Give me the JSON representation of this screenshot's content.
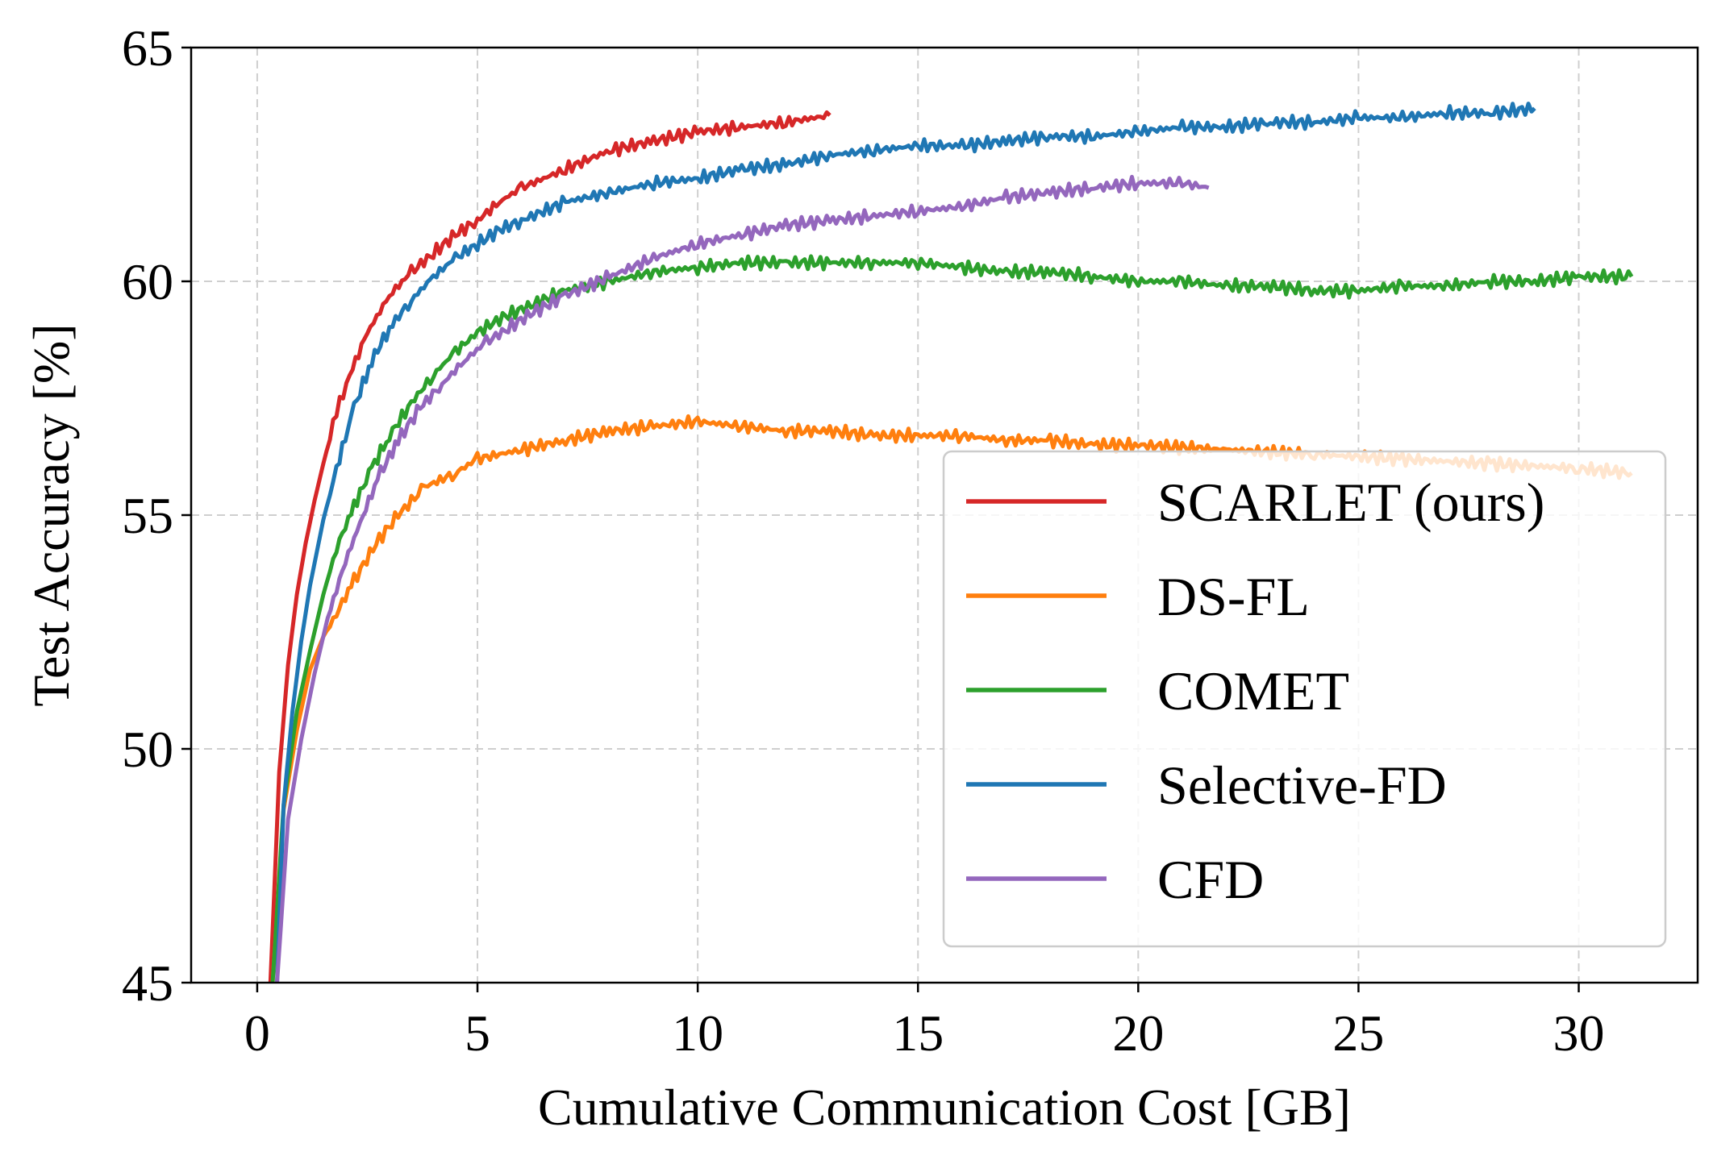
{
  "chart_data": {
    "type": "line",
    "title": "",
    "xlabel": "Cumulative Communication Cost [GB]",
    "ylabel": "Test Accuracy [%]",
    "xlim": [
      -1.5,
      32.7
    ],
    "ylim": [
      45,
      65
    ],
    "xticks": [
      0,
      5,
      10,
      15,
      20,
      25,
      30
    ],
    "yticks": [
      45,
      50,
      55,
      60,
      65
    ],
    "grid": true,
    "legend_position": "lower right",
    "series": [
      {
        "name": "SCARLET (ours)",
        "color": "#d62728",
        "x": [
          0.3,
          0.5,
          0.7,
          0.9,
          1.1,
          1.3,
          1.5,
          1.8,
          2.1,
          2.5,
          3.0,
          3.5,
          4.0,
          4.5,
          5.0,
          5.5,
          6.0,
          7.0,
          8.0,
          9.0,
          10.0,
          11.0,
          12.0,
          13.0
        ],
        "y": [
          45.0,
          49.5,
          51.8,
          53.3,
          54.4,
          55.3,
          56.1,
          57.2,
          58.0,
          58.9,
          59.7,
          60.2,
          60.6,
          61.0,
          61.3,
          61.7,
          62.0,
          62.4,
          62.8,
          63.0,
          63.2,
          63.3,
          63.4,
          63.55
        ]
      },
      {
        "name": "DS-FL",
        "color": "#ff7f0e",
        "x": [
          0.35,
          0.6,
          0.9,
          1.2,
          1.5,
          1.8,
          2.2,
          2.7,
          3.2,
          3.8,
          4.5,
          5.0,
          6.0,
          7.0,
          8.0,
          9.0,
          10.0,
          11.0,
          12.0,
          13.0,
          14.0,
          15.0,
          16.0,
          17.0,
          18.0,
          19.0,
          20.0,
          22.0,
          24.0,
          26.0,
          28.0,
          30.0,
          31.2
        ],
        "y": [
          45.0,
          48.7,
          50.4,
          51.7,
          52.4,
          52.9,
          53.6,
          54.4,
          55.0,
          55.6,
          55.9,
          56.2,
          56.4,
          56.6,
          56.8,
          56.9,
          57.0,
          56.9,
          56.8,
          56.8,
          56.7,
          56.7,
          56.7,
          56.6,
          56.6,
          56.5,
          56.5,
          56.4,
          56.3,
          56.2,
          56.1,
          56.0,
          55.9
        ]
      },
      {
        "name": "COMET",
        "color": "#2ca02c",
        "x": [
          0.35,
          0.6,
          0.9,
          1.2,
          1.5,
          1.8,
          2.2,
          2.6,
          3.0,
          3.5,
          4.0,
          4.5,
          5.0,
          5.5,
          6.0,
          7.0,
          8.0,
          9.0,
          10.0,
          11.0,
          12.0,
          13.0,
          14.0,
          15.0,
          16.0,
          17.0,
          18.0,
          19.0,
          20.0,
          21.0,
          22.0,
          23.0,
          24.0,
          25.0,
          26.0,
          27.0,
          28.0,
          29.0,
          30.0,
          31.2
        ],
        "y": [
          45.0,
          48.8,
          50.8,
          52.1,
          53.3,
          54.3,
          55.2,
          56.0,
          56.7,
          57.4,
          58.0,
          58.5,
          58.9,
          59.2,
          59.4,
          59.8,
          60.0,
          60.2,
          60.3,
          60.4,
          60.4,
          60.4,
          60.4,
          60.4,
          60.3,
          60.2,
          60.2,
          60.1,
          60.0,
          60.0,
          59.9,
          59.9,
          59.8,
          59.8,
          59.9,
          59.9,
          60.0,
          60.0,
          60.1,
          60.1
        ]
      },
      {
        "name": "Selective-FD",
        "color": "#1f77b4",
        "x": [
          0.45,
          0.6,
          0.8,
          1.0,
          1.2,
          1.5,
          1.8,
          2.2,
          2.6,
          3.0,
          3.5,
          4.0,
          4.5,
          5.0,
          5.5,
          6.0,
          7.0,
          8.0,
          9.0,
          10.0,
          11.0,
          12.0,
          13.0,
          14.0,
          15.0,
          16.0,
          17.0,
          18.0,
          19.0,
          20.0,
          21.0,
          22.0,
          23.0,
          24.0,
          25.0,
          26.0,
          27.0,
          28.0,
          29.0
        ],
        "y": [
          45.0,
          48.8,
          50.8,
          52.3,
          53.5,
          54.9,
          56.0,
          57.3,
          58.3,
          59.0,
          59.6,
          60.1,
          60.5,
          60.8,
          61.1,
          61.3,
          61.7,
          61.9,
          62.1,
          62.2,
          62.4,
          62.5,
          62.7,
          62.8,
          62.9,
          62.9,
          63.0,
          63.1,
          63.1,
          63.2,
          63.3,
          63.3,
          63.4,
          63.4,
          63.5,
          63.5,
          63.6,
          63.6,
          63.7
        ]
      },
      {
        "name": "CFD",
        "color": "#9467bd",
        "x": [
          0.45,
          0.7,
          1.0,
          1.3,
          1.6,
          2.0,
          2.4,
          2.8,
          3.2,
          3.7,
          4.2,
          4.7,
          5.2,
          5.7,
          6.2,
          7.0,
          8.0,
          9.0,
          10.0,
          11.0,
          12.0,
          13.0,
          14.0,
          15.0,
          16.0,
          17.0,
          18.0,
          19.0,
          20.0,
          21.0,
          21.6
        ],
        "y": [
          45.0,
          48.5,
          50.2,
          51.6,
          52.8,
          54.0,
          55.0,
          55.9,
          56.6,
          57.3,
          57.8,
          58.3,
          58.7,
          59.0,
          59.3,
          59.7,
          60.1,
          60.5,
          60.8,
          61.0,
          61.2,
          61.3,
          61.4,
          61.5,
          61.6,
          61.8,
          61.9,
          62.0,
          62.1,
          62.1,
          62.0
        ]
      }
    ]
  }
}
